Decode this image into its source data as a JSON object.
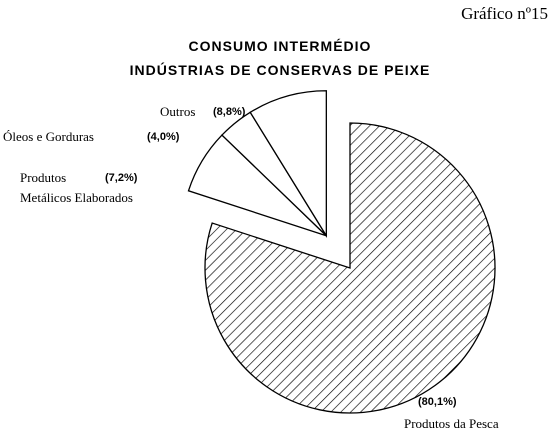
{
  "chart_data": {
    "type": "pie",
    "label": "Gráfico nº15",
    "title": "CONSUMO INTERMÉDIO",
    "subtitle": "INDÚSTRIAS DE CONSERVAS DE PEIXE",
    "categories": [
      "Produtos da Pesca",
      "Produtos\nMetálicos Elaborados",
      "Óleos e Gorduras",
      "Outros"
    ],
    "values": [
      80.1,
      7.2,
      4.0,
      8.8
    ],
    "value_labels": [
      "(80,1%)",
      "(7,2%)",
      "(4,0%)",
      "(8,8%)"
    ],
    "fills": [
      "hatch",
      "#ffffff",
      "#ffffff",
      "#ffffff"
    ]
  }
}
